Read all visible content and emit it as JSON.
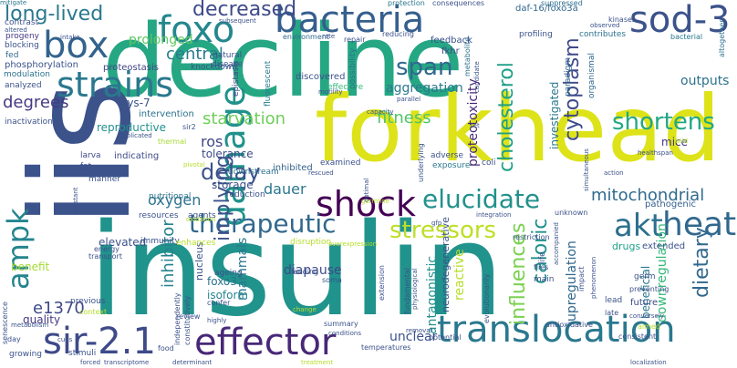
{
  "words": [
    {
      "text": "decline",
      "color": "#26a784",
      "size": 110
    },
    {
      "text": "insulin",
      "color": "#20938c",
      "size": 140
    },
    {
      "text": "iis",
      "color": "#3b528b",
      "size": 150
    },
    {
      "text": "forkhead",
      "color": "#dde318",
      "size": 100
    },
    {
      "text": "translocation",
      "color": "#2a788e",
      "size": 40
    },
    {
      "text": "sir-2.1",
      "color": "#3e4a89",
      "size": 40
    },
    {
      "text": "effector",
      "color": "#482878",
      "size": 40
    },
    {
      "text": "bacteria",
      "color": "#355f8d",
      "size": 40
    },
    {
      "text": "foxo",
      "color": "#24878e",
      "size": 40
    },
    {
      "text": "sod-3",
      "color": "#3b528b",
      "size": 40
    },
    {
      "text": "box",
      "color": "#33638d",
      "size": 40
    },
    {
      "text": "strains",
      "color": "#2a788e",
      "size": 38
    },
    {
      "text": "damage",
      "color": "#21918c",
      "size": 38
    },
    {
      "text": "shock",
      "color": "#440154",
      "size": 38
    },
    {
      "text": "heat",
      "color": "#31688e",
      "size": 36
    },
    {
      "text": "akt",
      "color": "#2d708e",
      "size": 34
    },
    {
      "text": "ampk",
      "color": "#25858e",
      "size": 32
    },
    {
      "text": "therapeutic",
      "color": "#31688e",
      "size": 28
    },
    {
      "text": "elucidate",
      "color": "#21918c",
      "size": 28
    },
    {
      "text": "stressors",
      "color": "#bddf26",
      "size": 26
    },
    {
      "text": "shortens",
      "color": "#22a884",
      "size": 26
    },
    {
      "text": "span",
      "color": "#31688e",
      "size": 26
    },
    {
      "text": "long-lived",
      "color": "#2a788e",
      "size": 22
    },
    {
      "text": "decreased",
      "color": "#3e4a89",
      "size": 22
    },
    {
      "text": "delay",
      "color": "#3b528b",
      "size": 24
    },
    {
      "text": "caloric",
      "color": "#21918c",
      "size": 22
    },
    {
      "text": "influences",
      "color": "#7ad151",
      "size": 22
    },
    {
      "text": "cholesterol",
      "color": "#1fa088",
      "size": 22
    },
    {
      "text": "cytoplasm",
      "color": "#3e4a89",
      "size": 22
    },
    {
      "text": "dietary",
      "color": "#31688e",
      "size": 22
    },
    {
      "text": "implying",
      "color": "#3b528b",
      "size": 22
    },
    {
      "text": "degrees",
      "color": "#443983",
      "size": 18
    },
    {
      "text": "central",
      "color": "#287c8e",
      "size": 18
    },
    {
      "text": "starvation",
      "color": "#6ece58",
      "size": 18
    },
    {
      "text": "fitness",
      "color": "#52c569",
      "size": 18
    },
    {
      "text": "mitochondrial",
      "color": "#2f6b8e",
      "size": 18
    },
    {
      "text": "e1370",
      "color": "#3e4a89",
      "size": 18
    },
    {
      "text": "inhibitor",
      "color": "#26818e",
      "size": 18
    },
    {
      "text": "dauer",
      "color": "#2a788e",
      "size": 16
    },
    {
      "text": "ros",
      "color": "#404688",
      "size": 16
    },
    {
      "text": "oxygen",
      "color": "#2c718e",
      "size": 16
    },
    {
      "text": "aggregation",
      "color": "#2a788e",
      "size": 14
    },
    {
      "text": "prolonged",
      "color": "#5ec962",
      "size": 14
    },
    {
      "text": "diapause",
      "color": "#3e4a89",
      "size": 14
    },
    {
      "text": "antagonistic",
      "color": "#21918c",
      "size": 14
    },
    {
      "text": "unclear",
      "color": "#3b528b",
      "size": 14
    },
    {
      "text": "mammals",
      "color": "#2a788e",
      "size": 14
    },
    {
      "text": "outputs",
      "color": "#2c728e",
      "size": 14
    },
    {
      "text": "upregulation",
      "color": "#31688e",
      "size": 14
    },
    {
      "text": "downregulation",
      "color": "#35b779",
      "size": 14
    },
    {
      "text": "proteotoxicity",
      "color": "#482878",
      "size": 14
    },
    {
      "text": "reactive",
      "color": "#b5de2b",
      "size": 14
    },
    {
      "text": "elevated",
      "color": "#3b528b",
      "size": 12
    },
    {
      "text": "quality",
      "color": "#443983",
      "size": 12
    },
    {
      "text": "lys-7",
      "color": "#3b528b",
      "size": 12
    },
    {
      "text": "reproductive",
      "color": "#21918c",
      "size": 12
    },
    {
      "text": "tolerance",
      "color": "#3e4a89",
      "size": 12
    },
    {
      "text": "storage",
      "color": "#3b528b",
      "size": 12
    },
    {
      "text": "isoform",
      "color": "#25858e",
      "size": 12
    },
    {
      "text": "foxo3",
      "color": "#2c728e",
      "size": 12
    },
    {
      "text": "benefit",
      "color": "#a5db36",
      "size": 12
    },
    {
      "text": "mice",
      "color": "#443983",
      "size": 12
    },
    {
      "text": "beneficial",
      "color": "#2a788e",
      "size": 12
    },
    {
      "text": "pathogenic",
      "color": "#355f8d",
      "size": 10
    },
    {
      "text": "investigated",
      "color": "#2a788e",
      "size": 12
    },
    {
      "text": "drugs",
      "color": "#1fa088",
      "size": 11
    },
    {
      "text": "extended",
      "color": "#3b528b",
      "size": 10
    },
    {
      "text": "future",
      "color": "#3e4a89",
      "size": 10
    },
    {
      "text": "neurodegenerative",
      "color": "#3b528b",
      "size": 11
    },
    {
      "text": "nucleus",
      "color": "#3b528b",
      "size": 11
    },
    {
      "text": "indicating",
      "color": "#3e4a89",
      "size": 10
    },
    {
      "text": "inhibited",
      "color": "#33638d",
      "size": 10
    },
    {
      "text": "intervention",
      "color": "#2c728e",
      "size": 10
    },
    {
      "text": "phosphorylation",
      "color": "#3b528b",
      "size": 10
    },
    {
      "text": "proteostasis",
      "color": "#404688",
      "size": 10
    },
    {
      "text": "knockdown",
      "color": "#3b528b",
      "size": 9
    },
    {
      "text": "epistasis",
      "color": "#3e4a89",
      "size": 9
    },
    {
      "text": "fluorescent",
      "color": "#2a788e",
      "size": 9
    },
    {
      "text": "discovered",
      "color": "#3b528b",
      "size": 10
    },
    {
      "text": "effective",
      "color": "#35b779",
      "size": 9
    },
    {
      "text": "possibility",
      "color": "#2d708e",
      "size": 9
    },
    {
      "text": "metabolite",
      "color": "#2c718e",
      "size": 8
    },
    {
      "text": "profiling",
      "color": "#3b528b",
      "size": 9
    },
    {
      "text": "paradigm",
      "color": "#31688e",
      "size": 9
    },
    {
      "text": "organismal",
      "color": "#31688e",
      "size": 9
    },
    {
      "text": "daf-16/foxo3a",
      "color": "#31688e",
      "size": 10
    },
    {
      "text": "feedback",
      "color": "#3b528b",
      "size": 10
    },
    {
      "text": "fkhr",
      "color": "#3e4a89",
      "size": 10
    },
    {
      "text": "natural",
      "color": "#3b528b",
      "size": 9
    },
    {
      "text": "disease",
      "color": "#3b528b",
      "size": 9
    },
    {
      "text": "reducing",
      "color": "#3b528b",
      "size": 8
    },
    {
      "text": "repair",
      "color": "#3b528b",
      "size": 8
    },
    {
      "text": "environment",
      "color": "#31688e",
      "size": 8
    },
    {
      "text": "contributes",
      "color": "#2c728e",
      "size": 9
    },
    {
      "text": "suppressed",
      "color": "#2d708e",
      "size": 8
    },
    {
      "text": "bacterial",
      "color": "#2a788e",
      "size": 8
    },
    {
      "text": "altogether",
      "color": "#2d708e",
      "size": 8
    },
    {
      "text": "kinases",
      "color": "#3b528b",
      "size": 8
    },
    {
      "text": "observed",
      "color": "#3b528b",
      "size": 7
    },
    {
      "text": "protection",
      "color": "#2a788e",
      "size": 8
    },
    {
      "text": "consequences",
      "color": "#3b528b",
      "size": 8
    },
    {
      "text": "mitigate",
      "color": "#2a788e",
      "size": 7
    },
    {
      "text": "contrast",
      "color": "#3b528b",
      "size": 9
    },
    {
      "text": "altered",
      "color": "#3b528b",
      "size": 7
    },
    {
      "text": "progeny",
      "color": "#443983",
      "size": 9
    },
    {
      "text": "blocking",
      "color": "#3b528b",
      "size": 9
    },
    {
      "text": "fed",
      "color": "#31688e",
      "size": 9
    },
    {
      "text": "modulation",
      "color": "#2c728e",
      "size": 9
    },
    {
      "text": "analyzed",
      "color": "#3b528b",
      "size": 9
    },
    {
      "text": "inactivation",
      "color": "#3b528b",
      "size": 9
    },
    {
      "text": "larva",
      "color": "#3e4a89",
      "size": 9
    },
    {
      "text": "fat",
      "color": "#3b528b",
      "size": 9
    },
    {
      "text": "manner",
      "color": "#3b528b",
      "size": 9
    },
    {
      "text": "sir2",
      "color": "#3b528b",
      "size": 8
    },
    {
      "text": "thermal",
      "color": "#a5db36",
      "size": 8
    },
    {
      "text": "downstream",
      "color": "#2c728e",
      "size": 9
    },
    {
      "text": "nutritional",
      "color": "#2c728e",
      "size": 9
    },
    {
      "text": "reduction",
      "color": "#3b528b",
      "size": 9
    },
    {
      "text": "examined",
      "color": "#3b528b",
      "size": 9
    },
    {
      "text": "adverse",
      "color": "#3b528b",
      "size": 9
    },
    {
      "text": "exposure",
      "color": "#2a788e",
      "size": 9
    },
    {
      "text": "coli",
      "color": "#3b528b",
      "size": 9
    },
    {
      "text": "resources",
      "color": "#3b528b",
      "size": 9
    },
    {
      "text": "agents",
      "color": "#3b528b",
      "size": 9
    },
    {
      "text": "immunity",
      "color": "#3b528b",
      "size": 9
    },
    {
      "text": "enhances",
      "color": "#b5de2b",
      "size": 9
    },
    {
      "text": "disruption",
      "color": "#b5de2b",
      "size": 9
    },
    {
      "text": "overexpression",
      "color": "#b5de2b",
      "size": 7
    },
    {
      "text": "energy",
      "color": "#3b528b",
      "size": 8
    },
    {
      "text": "transport",
      "color": "#3b528b",
      "size": 8
    },
    {
      "text": "ageing",
      "color": "#3b528b",
      "size": 9
    },
    {
      "text": "feeding",
      "color": "#3b528b",
      "size": 8
    },
    {
      "text": "soma",
      "color": "#3b528b",
      "size": 8
    },
    {
      "text": "previous",
      "color": "#3b528b",
      "size": 9
    },
    {
      "text": "context",
      "color": "#b5de2b",
      "size": 8
    },
    {
      "text": "confer",
      "color": "#3b528b",
      "size": 8
    },
    {
      "text": "review",
      "color": "#3b528b",
      "size": 8
    },
    {
      "text": "highly",
      "color": "#3b528b",
      "size": 7
    },
    {
      "text": "change",
      "color": "#b5de2b",
      "size": 7
    },
    {
      "text": "day",
      "color": "#3b528b",
      "size": 8
    },
    {
      "text": "growing",
      "color": "#3b528b",
      "size": 9
    },
    {
      "text": "stimuli",
      "color": "#3b528b",
      "size": 9
    },
    {
      "text": "food",
      "color": "#3b528b",
      "size": 8
    },
    {
      "text": "forced",
      "color": "#3b528b",
      "size": 7
    },
    {
      "text": "transcriptome",
      "color": "#3b528b",
      "size": 7
    },
    {
      "text": "determinant",
      "color": "#3b528b",
      "size": 7
    },
    {
      "text": "treatment",
      "color": "#b5de2b",
      "size": 7
    },
    {
      "text": "summary",
      "color": "#3b528b",
      "size": 8
    },
    {
      "text": "conditions",
      "color": "#3b528b",
      "size": 7
    },
    {
      "text": "temperatures",
      "color": "#3b528b",
      "size": 8
    },
    {
      "text": "potential",
      "color": "#3b528b",
      "size": 8
    },
    {
      "text": "removal",
      "color": "#3b528b",
      "size": 7
    },
    {
      "text": "fundamental",
      "color": "#3b528b",
      "size": 8
    },
    {
      "text": "extension",
      "color": "#3b528b",
      "size": 8
    },
    {
      "text": "physiological",
      "color": "#3b528b",
      "size": 7
    },
    {
      "text": "evolutionarily",
      "color": "#3b528b",
      "size": 8
    },
    {
      "text": "antioxidative",
      "color": "#3b528b",
      "size": 8
    },
    {
      "text": "consistent",
      "color": "#3b528b",
      "size": 8
    },
    {
      "text": "aimed",
      "color": "#b5de2b",
      "size": 8
    },
    {
      "text": "localization",
      "color": "#3b528b",
      "size": 7
    },
    {
      "text": "conversely",
      "color": "#3b528b",
      "size": 7
    },
    {
      "text": "preventing",
      "color": "#3b528b",
      "size": 8
    },
    {
      "text": "late",
      "color": "#3b528b",
      "size": 8
    },
    {
      "text": "lead",
      "color": "#3b528b",
      "size": 9
    },
    {
      "text": "germ",
      "color": "#3b528b",
      "size": 9
    },
    {
      "text": "impact",
      "color": "#3b528b",
      "size": 8
    },
    {
      "text": "flies",
      "color": "#3b528b",
      "size": 8
    },
    {
      "text": "main",
      "color": "#3b528b",
      "size": 9
    },
    {
      "text": "phenomenon",
      "color": "#3b528b",
      "size": 7
    },
    {
      "text": "life",
      "color": "#3b528b",
      "size": 9
    },
    {
      "text": "restriction",
      "color": "#3b528b",
      "size": 8
    },
    {
      "text": "unknown",
      "color": "#3b528b",
      "size": 8
    },
    {
      "text": "accompanied",
      "color": "#3b528b",
      "size": 7
    },
    {
      "text": "integration",
      "color": "#3b528b",
      "size": 7
    },
    {
      "text": "germline",
      "color": "#b5de2b",
      "size": 7
    },
    {
      "text": "gfp",
      "color": "#3b528b",
      "size": 7
    },
    {
      "text": "underlying",
      "color": "#3b528b",
      "size": 8
    },
    {
      "text": "optimal",
      "color": "#3b528b",
      "size": 7
    },
    {
      "text": "healthspan",
      "color": "#3b528b",
      "size": 7
    },
    {
      "text": "wild",
      "color": "#b5de2b",
      "size": 7
    },
    {
      "text": "action",
      "color": "#3b528b",
      "size": 7
    },
    {
      "text": "simultaneous",
      "color": "#3b528b",
      "size": 7
    },
    {
      "text": "capacity",
      "color": "#3b528b",
      "size": 7
    },
    {
      "text": "motility",
      "color": "#3b528b",
      "size": 7
    },
    {
      "text": "parallel",
      "color": "#3b528b",
      "size": 7
    },
    {
      "text": "subsequent",
      "color": "#3b528b",
      "size": 7
    },
    {
      "text": "intake",
      "color": "#3b528b",
      "size": 7
    },
    {
      "text": "implicated",
      "color": "#3b528b",
      "size": 7
    },
    {
      "text": "candidate",
      "color": "#3b528b",
      "size": 7
    },
    {
      "text": "constitutively",
      "color": "#3b528b",
      "size": 8
    },
    {
      "text": "independently",
      "color": "#3b528b",
      "size": 8
    },
    {
      "text": "metabolism",
      "color": "#3b528b",
      "size": 7
    },
    {
      "text": "senescence",
      "color": "#3b528b",
      "size": 8
    },
    {
      "text": "resistant",
      "color": "#3b528b",
      "size": 7
    },
    {
      "text": "cues",
      "color": "#3b528b",
      "size": 7
    },
    {
      "text": "pivotal",
      "color": "#b5de2b",
      "size": 7
    },
    {
      "text": "rescued",
      "color": "#3b528b",
      "size": 7
    },
    {
      "text": "oxidation",
      "color": "#b5de2b",
      "size": 7
    },
    {
      "text": "rate",
      "color": "#3b528b",
      "size": 7
    },
    {
      "text": "set",
      "color": "#3b528b",
      "size": 7
    }
  ]
}
